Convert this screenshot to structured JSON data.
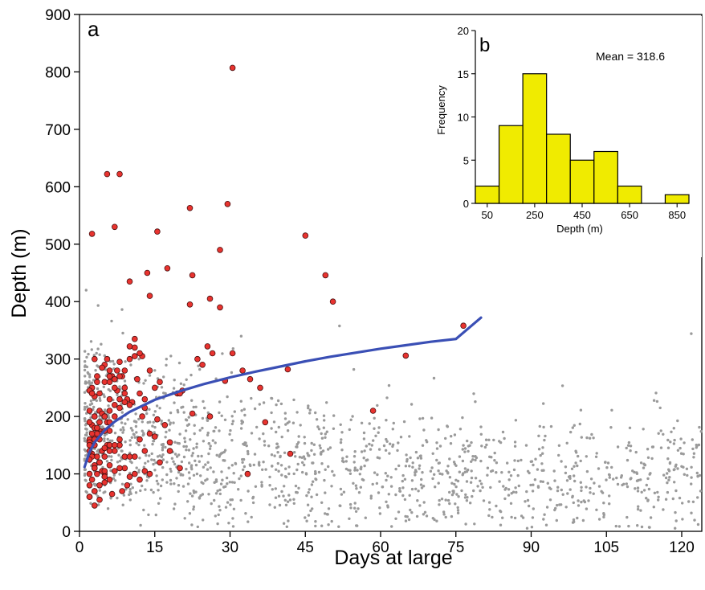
{
  "chart_data": [
    {
      "type": "scatter",
      "panel_label": "a",
      "xlabel": "Days at large",
      "ylabel": "Depth (m)",
      "xlim": [
        0,
        124
      ],
      "ylim": [
        0,
        900
      ],
      "xticks": [
        0,
        15,
        30,
        45,
        60,
        75,
        90,
        105,
        120
      ],
      "yticks": [
        0,
        100,
        200,
        300,
        400,
        500,
        600,
        700,
        800,
        900
      ],
      "grid": false,
      "colors": {
        "background_points": "#9a9a9a",
        "highlight_fill": "#e8332f",
        "highlight_stroke": "#4a1010",
        "curve": "#3a4fb5"
      },
      "series": [
        {
          "role": "background",
          "points": "scattered gray points, ~1500, depth mostly 20-400 m, days 1-124"
        },
        {
          "role": "highlight",
          "x": [
            30.5,
            5.5,
            8,
            29.5,
            22,
            2.5,
            7,
            15.5,
            28,
            45,
            17.5,
            13.5,
            10,
            22.5,
            49,
            50.5,
            22,
            26,
            28,
            14,
            76.5,
            11,
            25.5,
            30.5,
            65,
            41.5,
            34,
            36,
            58.5,
            10,
            23.5,
            12.5,
            26.5,
            32.5,
            24.5,
            20.5,
            14,
            19.5,
            29,
            20,
            37,
            42,
            17,
            18,
            22.5,
            15.5,
            20,
            12.5,
            14,
            18,
            33.5,
            13,
            10.5,
            15,
            11.5,
            9,
            26,
            16,
            13,
            7.5,
            8.5,
            6,
            4,
            3,
            5,
            9.5,
            11,
            12,
            6.5,
            7,
            3.5,
            4.5,
            8,
            10,
            5.5,
            2.5,
            3,
            5,
            6,
            7.5,
            9,
            4,
            3.5,
            2,
            2.5,
            3,
            6,
            8,
            4.5,
            5.5,
            7,
            2,
            3,
            4,
            5,
            6,
            3,
            2.5,
            4,
            5.5,
            2,
            3.5,
            4.5,
            6,
            2,
            3,
            4,
            5,
            2.5,
            3.5,
            2,
            3,
            4,
            2.5,
            3,
            2,
            3,
            4,
            5,
            7,
            9,
            11,
            13,
            8,
            6,
            10,
            12,
            14,
            16,
            9,
            7,
            5,
            15,
            12,
            11,
            8,
            10,
            13,
            6,
            4,
            8.5,
            9.5,
            6.5,
            3,
            2,
            4,
            3,
            2,
            2.5,
            3.5,
            4.5,
            5,
            6,
            7,
            8,
            9,
            10,
            11,
            12,
            3,
            4,
            5,
            6,
            7,
            8,
            9,
            4,
            5,
            6,
            7,
            8,
            2,
            3,
            4,
            5,
            6,
            2,
            3,
            4,
            5,
            2,
            3,
            2.5,
            3.5,
            2,
            3
          ],
          "y": [
            807,
            622,
            622,
            570,
            563,
            518,
            530,
            522,
            490,
            515,
            458,
            450,
            435,
            446,
            446,
            400,
            395,
            405,
            390,
            410,
            358,
            335,
            322,
            310,
            306,
            282,
            265,
            250,
            210,
            322,
            300,
            305,
            310,
            280,
            290,
            245,
            280,
            240,
            262,
            240,
            190,
            135,
            185,
            140,
            205,
            195,
            110,
            200,
            170,
            155,
            100,
            215,
            225,
            250,
            265,
            250,
            200,
            260,
            230,
            245,
            270,
            280,
            240,
            300,
            290,
            230,
            320,
            240,
            270,
            250,
            260,
            285,
            295,
            220,
            300,
            250,
            235,
            260,
            270,
            280,
            225,
            210,
            270,
            245,
            240,
            200,
            230,
            215,
            205,
            190,
            200,
            210,
            180,
            175,
            200,
            190,
            165,
            185,
            170,
            150,
            160,
            170,
            140,
            175,
            155,
            150,
            160,
            145,
            135,
            130,
            140,
            150,
            120,
            130,
            115,
            125,
            110,
            120,
            100,
            105,
            110,
            130,
            140,
            150,
            150,
            95,
            90,
            100,
            120,
            130,
            140,
            175,
            165,
            160,
            100,
            110,
            130,
            105,
            115,
            120,
            70,
            80,
            65,
            70,
            80,
            55,
            45,
            60,
            90,
            100,
            105,
            95,
            260,
            265,
            270,
            280,
            300,
            305,
            310,
            180,
            190,
            200,
            210,
            220,
            230,
            240,
            120,
            130,
            140,
            150,
            160,
            60,
            70,
            80,
            85,
            90,
            100,
            110,
            120,
            105,
            150,
            160,
            170,
            180,
            190,
            200
          ],
          "marker": "circle-outlined"
        },
        {
          "role": "fit_curve",
          "x": [
            1,
            2,
            3,
            5,
            7,
            10,
            15,
            20,
            25,
            30,
            35,
            40,
            45,
            50,
            55,
            60,
            65,
            70,
            75,
            80
          ],
          "y": [
            112,
            138,
            155,
            176,
            191,
            208,
            229,
            244,
            257,
            268,
            278,
            287,
            296,
            304,
            311,
            318,
            324,
            330,
            335,
            372
          ]
        }
      ]
    },
    {
      "type": "bar",
      "panel_label": "b",
      "annotation": "Mean = 318.6",
      "xlabel": "Depth (m)",
      "ylabel": "Frequency",
      "bin_edges": [
        0,
        100,
        200,
        300,
        400,
        500,
        600,
        700,
        800,
        900
      ],
      "values": [
        2,
        9,
        15,
        8,
        5,
        6,
        2,
        0,
        1
      ],
      "xticks": [
        50,
        250,
        450,
        650,
        850
      ],
      "yticks": [
        0,
        5,
        10,
        15,
        20
      ],
      "ylim": [
        0,
        20
      ],
      "bar_color": "#f0eb00",
      "grid": false
    }
  ]
}
